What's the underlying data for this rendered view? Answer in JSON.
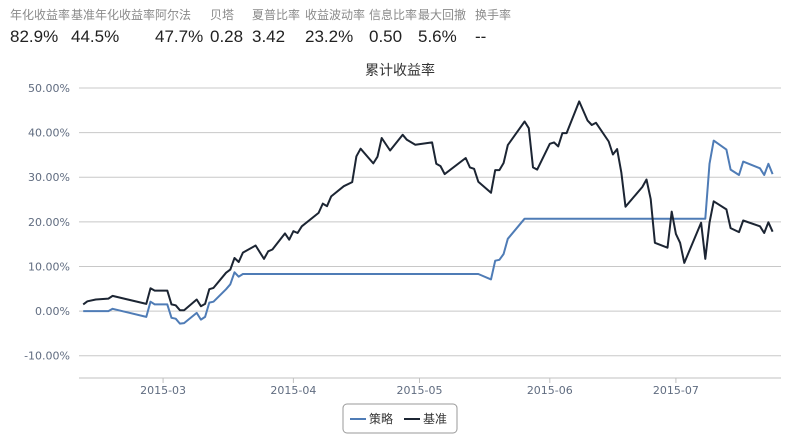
{
  "stats": [
    {
      "label": "年化收益率",
      "value": "82.9%"
    },
    {
      "label": "基准年化收益率",
      "value": "44.5%"
    },
    {
      "label": "阿尔法",
      "value": "47.7%"
    },
    {
      "label": "贝塔",
      "value": "0.28"
    },
    {
      "label": "夏普比率",
      "value": "3.42"
    },
    {
      "label": "收益波动率",
      "value": "23.2%"
    },
    {
      "label": "信息比率",
      "value": "0.50"
    },
    {
      "label": "最大回撤",
      "value": "5.6%"
    },
    {
      "label": "换手率",
      "value": "--"
    }
  ],
  "chart_data": {
    "type": "line",
    "title": "累计收益率",
    "xlabel": "",
    "ylabel": "",
    "xlim": [
      "2015-02-09",
      "2015-07-26"
    ],
    "ylim": [
      -15,
      50
    ],
    "yticks": [
      -10,
      0,
      10,
      20,
      30,
      40,
      50
    ],
    "ytick_labels": [
      "-10.00%",
      "0.00%",
      "10.00%",
      "20.00%",
      "30.00%",
      "40.00%",
      "50.00%"
    ],
    "xticks": [
      "2015-03-01",
      "2015-04-01",
      "2015-05-01",
      "2015-06-01",
      "2015-07-01"
    ],
    "xtick_labels": [
      "2015-03",
      "2015-04",
      "2015-05",
      "2015-06",
      "2015-07"
    ],
    "grid": true,
    "legend_position": "bottom-center",
    "series": [
      {
        "name": "策略",
        "color": "#4f7cb6",
        "points": [
          [
            "2015-02-10",
            0
          ],
          [
            "2015-02-16",
            0
          ],
          [
            "2015-02-17",
            0.5
          ],
          [
            "2015-02-25",
            -1.3
          ],
          [
            "2015-02-26",
            2.1
          ],
          [
            "2015-02-27",
            1.5
          ],
          [
            "2015-03-02",
            1.5
          ],
          [
            "2015-03-03",
            -1.5
          ],
          [
            "2015-03-04",
            -1.7
          ],
          [
            "2015-03-05",
            -2.8
          ],
          [
            "2015-03-06",
            -2.7
          ],
          [
            "2015-03-09",
            -0.4
          ],
          [
            "2015-03-10",
            -1.9
          ],
          [
            "2015-03-11",
            -1.3
          ],
          [
            "2015-03-12",
            1.9
          ],
          [
            "2015-03-13",
            2.1
          ],
          [
            "2015-03-16",
            4.9
          ],
          [
            "2015-03-17",
            6.0
          ],
          [
            "2015-03-18",
            8.7
          ],
          [
            "2015-03-19",
            7.7
          ],
          [
            "2015-03-20",
            8.3
          ],
          [
            "2015-05-15",
            8.3
          ],
          [
            "2015-05-18",
            7.1
          ],
          [
            "2015-05-19",
            11.3
          ],
          [
            "2015-05-20",
            11.5
          ],
          [
            "2015-05-21",
            12.8
          ],
          [
            "2015-05-22",
            16.2
          ],
          [
            "2015-05-26",
            20.7
          ],
          [
            "2015-07-08",
            20.7
          ],
          [
            "2015-07-09",
            33.0
          ],
          [
            "2015-07-10",
            38.2
          ],
          [
            "2015-07-13",
            36.2
          ],
          [
            "2015-07-14",
            31.7
          ],
          [
            "2015-07-16",
            30.5
          ],
          [
            "2015-07-17",
            33.5
          ],
          [
            "2015-07-21",
            32.0
          ],
          [
            "2015-07-22",
            30.5
          ],
          [
            "2015-07-23",
            33.0
          ],
          [
            "2015-07-24",
            30.7
          ]
        ]
      },
      {
        "name": "基准",
        "color": "#1c2533",
        "points": [
          [
            "2015-02-10",
            1.5
          ],
          [
            "2015-02-11",
            2.2
          ],
          [
            "2015-02-13",
            2.6
          ],
          [
            "2015-02-16",
            2.8
          ],
          [
            "2015-02-17",
            3.4
          ],
          [
            "2015-02-25",
            1.6
          ],
          [
            "2015-02-26",
            5.1
          ],
          [
            "2015-02-27",
            4.6
          ],
          [
            "2015-03-02",
            4.6
          ],
          [
            "2015-03-03",
            1.5
          ],
          [
            "2015-03-04",
            1.3
          ],
          [
            "2015-03-05",
            0.2
          ],
          [
            "2015-03-06",
            0.2
          ],
          [
            "2015-03-09",
            2.6
          ],
          [
            "2015-03-10",
            1.1
          ],
          [
            "2015-03-11",
            1.6
          ],
          [
            "2015-03-12",
            4.9
          ],
          [
            "2015-03-13",
            5.2
          ],
          [
            "2015-03-16",
            8.6
          ],
          [
            "2015-03-17",
            9.3
          ],
          [
            "2015-03-18",
            11.9
          ],
          [
            "2015-03-19",
            11.0
          ],
          [
            "2015-03-20",
            13.1
          ],
          [
            "2015-03-23",
            14.7
          ],
          [
            "2015-03-25",
            11.7
          ],
          [
            "2015-03-26",
            13.4
          ],
          [
            "2015-03-27",
            13.8
          ],
          [
            "2015-03-30",
            17.4
          ],
          [
            "2015-03-31",
            16.0
          ],
          [
            "2015-04-01",
            17.9
          ],
          [
            "2015-04-02",
            17.5
          ],
          [
            "2015-04-03",
            19.0
          ],
          [
            "2015-04-07",
            22.0
          ],
          [
            "2015-04-08",
            24.1
          ],
          [
            "2015-04-09",
            23.5
          ],
          [
            "2015-04-10",
            25.7
          ],
          [
            "2015-04-13",
            28.0
          ],
          [
            "2015-04-15",
            28.9
          ],
          [
            "2015-04-16",
            34.7
          ],
          [
            "2015-04-17",
            36.4
          ],
          [
            "2015-04-20",
            33.1
          ],
          [
            "2015-04-21",
            34.6
          ],
          [
            "2015-04-22",
            38.8
          ],
          [
            "2015-04-24",
            36.0
          ],
          [
            "2015-04-27",
            39.5
          ],
          [
            "2015-04-28",
            38.4
          ],
          [
            "2015-04-30",
            37.3
          ],
          [
            "2015-05-04",
            37.8
          ],
          [
            "2015-05-05",
            33.0
          ],
          [
            "2015-05-06",
            32.5
          ],
          [
            "2015-05-07",
            30.7
          ],
          [
            "2015-05-12",
            34.3
          ],
          [
            "2015-05-13",
            32.2
          ],
          [
            "2015-05-14",
            31.9
          ],
          [
            "2015-05-15",
            29.0
          ],
          [
            "2015-05-18",
            26.5
          ],
          [
            "2015-05-19",
            31.6
          ],
          [
            "2015-05-20",
            31.6
          ],
          [
            "2015-05-21",
            33.2
          ],
          [
            "2015-05-22",
            37.2
          ],
          [
            "2015-05-26",
            42.5
          ],
          [
            "2015-05-27",
            41.0
          ],
          [
            "2015-05-28",
            32.2
          ],
          [
            "2015-05-29",
            31.7
          ],
          [
            "2015-06-01",
            37.5
          ],
          [
            "2015-06-02",
            37.8
          ],
          [
            "2015-06-03",
            36.9
          ],
          [
            "2015-06-04",
            39.9
          ],
          [
            "2015-06-05",
            39.9
          ],
          [
            "2015-06-08",
            47.0
          ],
          [
            "2015-06-10",
            42.7
          ],
          [
            "2015-06-11",
            41.7
          ],
          [
            "2015-06-12",
            42.2
          ],
          [
            "2015-06-15",
            38.0
          ],
          [
            "2015-06-16",
            35.1
          ],
          [
            "2015-06-17",
            36.3
          ],
          [
            "2015-06-18",
            31.1
          ],
          [
            "2015-06-19",
            23.4
          ],
          [
            "2015-06-23",
            27.8
          ],
          [
            "2015-06-24",
            29.5
          ],
          [
            "2015-06-25",
            25.1
          ],
          [
            "2015-06-26",
            15.3
          ],
          [
            "2015-06-29",
            14.2
          ],
          [
            "2015-06-30",
            22.3
          ],
          [
            "2015-07-01",
            17.3
          ],
          [
            "2015-07-02",
            15.3
          ],
          [
            "2015-07-03",
            10.8
          ],
          [
            "2015-07-07",
            19.8
          ],
          [
            "2015-07-08",
            11.7
          ],
          [
            "2015-07-09",
            19.8
          ],
          [
            "2015-07-10",
            24.6
          ],
          [
            "2015-07-13",
            22.8
          ],
          [
            "2015-07-14",
            18.6
          ],
          [
            "2015-07-16",
            17.7
          ],
          [
            "2015-07-17",
            20.3
          ],
          [
            "2015-07-21",
            19.0
          ],
          [
            "2015-07-22",
            17.5
          ],
          [
            "2015-07-23",
            19.9
          ],
          [
            "2015-07-24",
            17.8
          ]
        ]
      }
    ]
  }
}
